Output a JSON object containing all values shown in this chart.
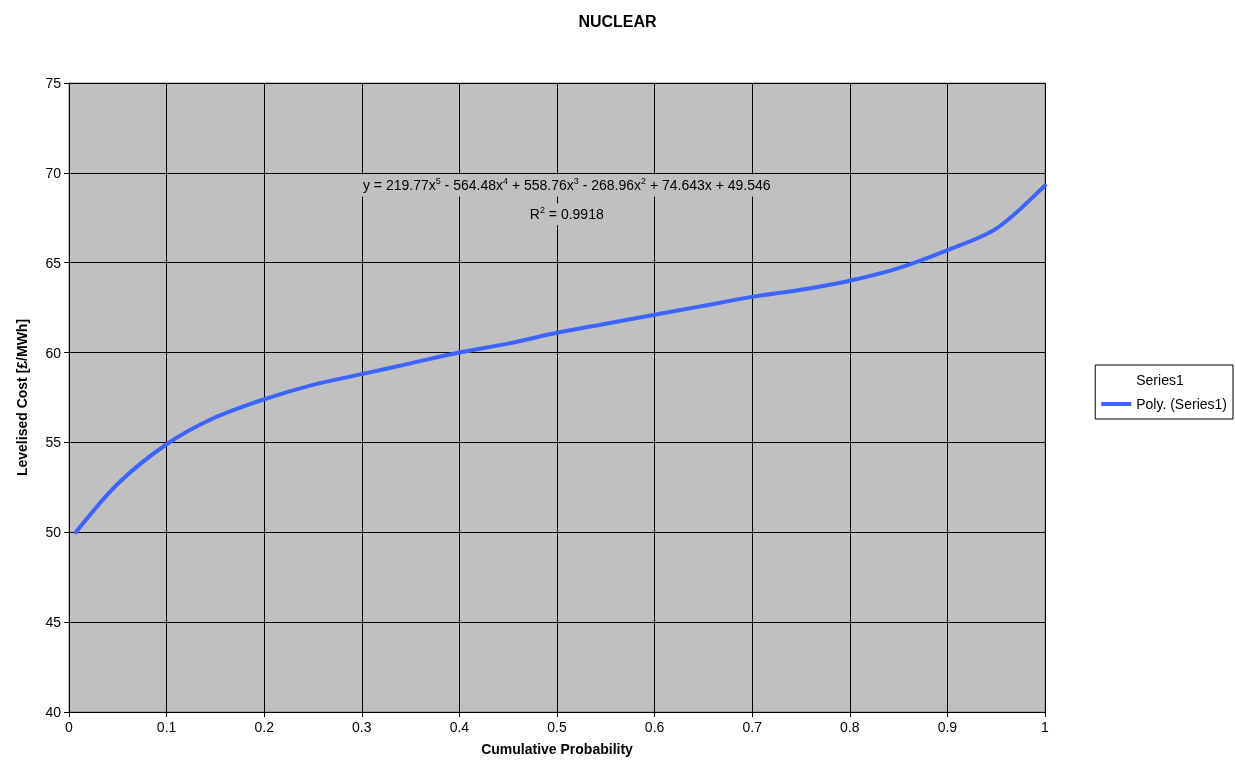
{
  "chart_data": {
    "type": "line",
    "title": "NUCLEAR",
    "xlabel": "Cumulative Probability",
    "ylabel": "Levelised Cost [£/MWh]",
    "annotations": [
      "y = 219.77x$^{5}$ - 564.48x$^{4}$ + 558.76x$^{3}$ - 268.96x$^{2}$ + 74.643x + 49.546",
      "R$^{2}$ = 0.9918"
    ],
    "series": [
      {
        "name": "Series1",
        "type": "scatter",
        "marker": "none"
      },
      {
        "name": "Poly. (Series1)",
        "color": "#3e64ff",
        "x": [
          0.007,
          0.05,
          0.1,
          0.15,
          0.2,
          0.25,
          0.3,
          0.35,
          0.4,
          0.45,
          0.5,
          0.55,
          0.6,
          0.65,
          0.7,
          0.75,
          0.8,
          0.85,
          0.9,
          0.95,
          1.0
        ],
        "values": [
          50.0,
          52.7,
          54.9,
          56.4,
          57.4,
          58.2,
          58.8,
          59.4,
          60.0,
          60.5,
          61.1,
          61.6,
          62.1,
          62.6,
          63.1,
          63.5,
          64.0,
          64.7,
          65.7,
          66.9,
          69.3
        ]
      }
    ],
    "xlim": [
      0,
      1
    ],
    "xticks": [
      0,
      0.1,
      0.2,
      0.3,
      0.4,
      0.5,
      0.6,
      0.7,
      0.8,
      0.9,
      1
    ],
    "ylim": [
      40,
      75
    ],
    "yticks": [
      40,
      45,
      50,
      55,
      60,
      65,
      70,
      75
    ],
    "grid": true,
    "legend": "right",
    "marker": "none",
    "line_style": "solid"
  }
}
